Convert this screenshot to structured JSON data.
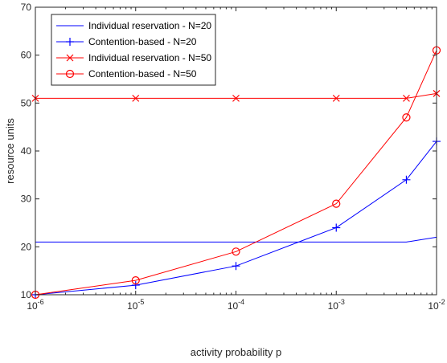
{
  "chart_data": {
    "type": "line",
    "title": "",
    "xlabel": "activity probability p",
    "ylabel": "resource units",
    "xscale": "log",
    "xlim": [
      1e-06,
      0.01
    ],
    "ylim": [
      10,
      70
    ],
    "grid": false,
    "legend_position": "top-left",
    "x_ticks": [
      {
        "value": 1e-06,
        "base": "10",
        "exp": "-6"
      },
      {
        "value": 1e-05,
        "base": "10",
        "exp": "-5"
      },
      {
        "value": 0.0001,
        "base": "10",
        "exp": "-4"
      },
      {
        "value": 0.001,
        "base": "10",
        "exp": "-3"
      },
      {
        "value": 0.01,
        "base": "10",
        "exp": "-2"
      }
    ],
    "y_ticks": [
      10,
      20,
      30,
      40,
      50,
      60,
      70
    ],
    "x": [
      1e-06,
      1e-05,
      0.0001,
      0.001,
      0.005,
      0.01
    ],
    "series": [
      {
        "name": "Individual reservation - N=20",
        "color": "#0000ff",
        "marker": "none",
        "values": [
          21,
          21,
          21,
          21,
          21,
          22
        ]
      },
      {
        "name": "Contention-based - N=20",
        "color": "#0000ff",
        "marker": "plus",
        "values": [
          10,
          12,
          16,
          24,
          34,
          42
        ]
      },
      {
        "name": "Individual reservation - N=50",
        "color": "#ff0000",
        "marker": "cross",
        "values": [
          51,
          51,
          51,
          51,
          51,
          52
        ]
      },
      {
        "name": "Contention-based - N=50",
        "color": "#ff0000",
        "marker": "circle",
        "values": [
          10,
          13,
          19,
          29,
          47,
          61
        ]
      }
    ]
  }
}
